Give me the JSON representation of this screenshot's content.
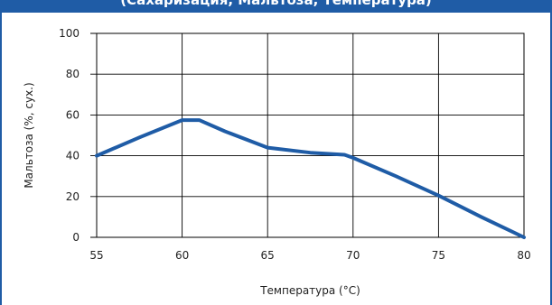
{
  "header": {
    "title": "(Сахаризация, Мальтоза, Температура)"
  },
  "chart_data": {
    "type": "line",
    "title": "",
    "xlabel": "Температура (°C)",
    "ylabel": "Мальтоза (%, сух.)",
    "xlim": [
      55,
      80
    ],
    "ylim": [
      0,
      100
    ],
    "x_ticks": [
      55,
      60,
      65,
      70,
      75,
      80
    ],
    "y_ticks": [
      0,
      20,
      40,
      60,
      80,
      100
    ],
    "grid": true,
    "series": [
      {
        "color": "#1f5ca6",
        "x": [
          55,
          57.5,
          60,
          61,
          62.5,
          65,
          67.5,
          69.5,
          70,
          72.5,
          75,
          77.5,
          80
        ],
        "y": [
          40,
          49,
          57.5,
          57.5,
          52,
          44,
          41.5,
          40.5,
          39,
          30,
          20.5,
          10,
          0
        ]
      }
    ]
  }
}
